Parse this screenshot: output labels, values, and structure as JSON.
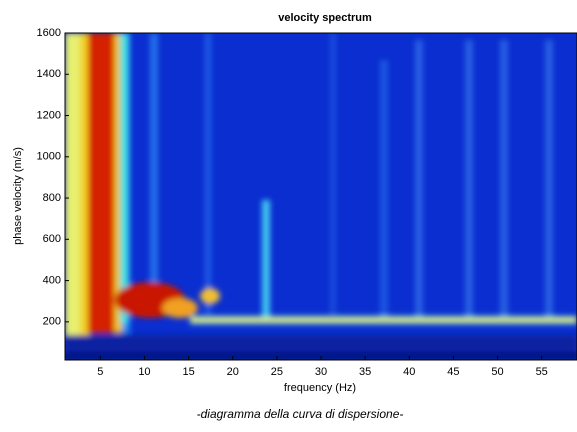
{
  "chart_data": {
    "type": "heatmap",
    "title": "velocity spectrum",
    "x_label": "frequency (Hz)",
    "y_label": "phase velocity (m/s)",
    "caption": "-diagramma della curva di dispersione-",
    "xlim": [
      1,
      59
    ],
    "xticks": [
      5,
      10,
      15,
      20,
      25,
      30,
      35,
      40,
      45,
      50,
      55
    ],
    "ylim": [
      15,
      1600
    ],
    "yticks": [
      200,
      400,
      600,
      800,
      1000,
      1200,
      1400,
      1600
    ]
  }
}
